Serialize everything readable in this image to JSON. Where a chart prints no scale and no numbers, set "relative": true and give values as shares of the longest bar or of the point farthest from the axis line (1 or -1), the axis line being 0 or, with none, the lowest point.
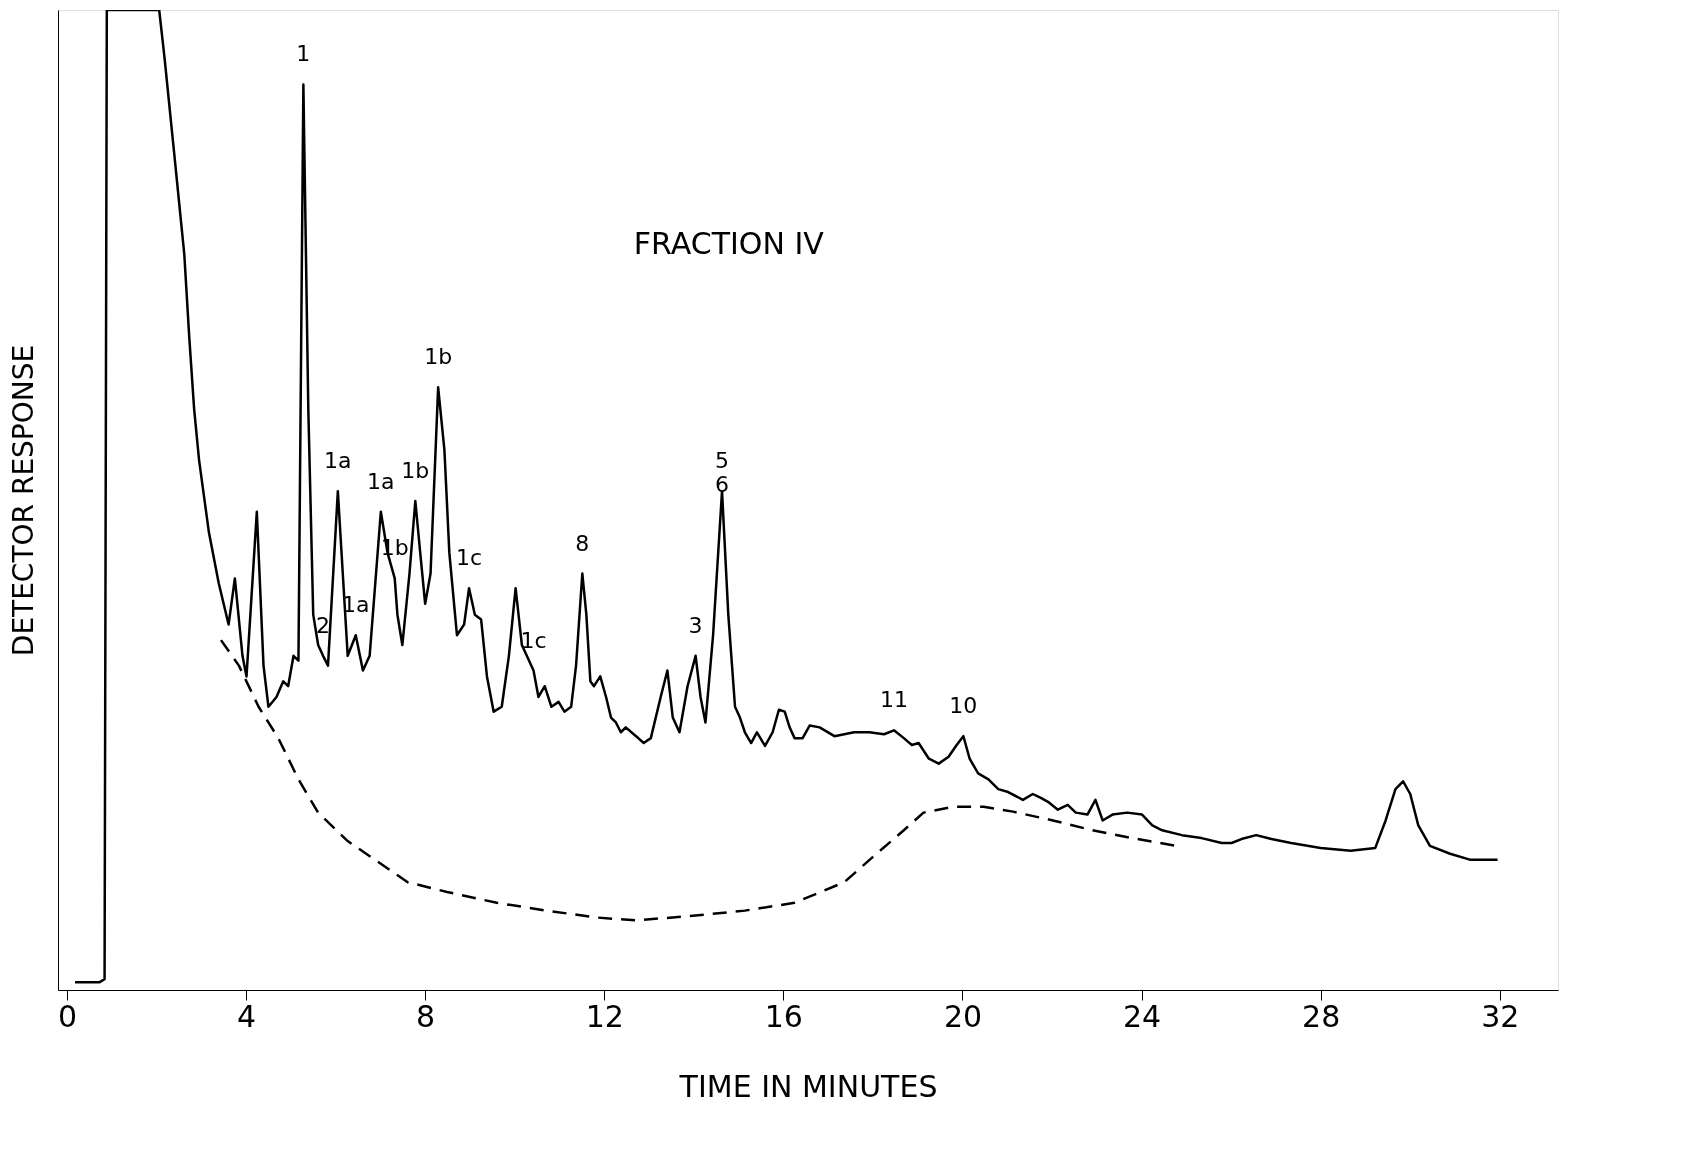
{
  "chart_data": {
    "type": "line",
    "title": "FRACTION IV",
    "xlabel": "TIME IN MINUTES",
    "ylabel": "DETECTOR RESPONSE",
    "relative": true,
    "xlim": [
      -0.2,
      33.3
    ],
    "xticks": [
      0,
      4,
      8,
      12,
      16,
      20,
      24,
      28,
      32
    ],
    "grid": false,
    "series": [
      {
        "color": "#000000",
        "line_style": "solid",
        "x": [
          0.18,
          0.73,
          0.84,
          0.89,
          2.06,
          2.18,
          2.39,
          2.62,
          2.73,
          2.84,
          2.95,
          3.17,
          3.39,
          3.61,
          3.75,
          3.92,
          4.01,
          4.24,
          4.39,
          4.5,
          4.68,
          4.83,
          4.94,
          5.06,
          5.17,
          5.28,
          5.39,
          5.5,
          5.61,
          5.72,
          5.83,
          6.05,
          6.16,
          6.27,
          6.45,
          6.61,
          6.76,
          7.01,
          7.16,
          7.32,
          7.38,
          7.49,
          7.65,
          7.78,
          7.89,
          8.0,
          8.12,
          8.29,
          8.43,
          8.54,
          8.71,
          8.87,
          8.98,
          9.11,
          9.25,
          9.38,
          9.53,
          9.71,
          9.87,
          10.02,
          10.16,
          10.27,
          10.42,
          10.53,
          10.67,
          10.82,
          10.98,
          11.11,
          11.26,
          11.37,
          11.51,
          11.6,
          11.69,
          11.77,
          11.91,
          12.04,
          12.15,
          12.26,
          12.37,
          12.48,
          12.71,
          12.88,
          13.04,
          13.26,
          13.41,
          13.53,
          13.68,
          13.86,
          14.04,
          14.15,
          14.26,
          14.43,
          14.63,
          14.77,
          14.92,
          15.03,
          15.14,
          15.28,
          15.41,
          15.59,
          15.76,
          15.9,
          16.03,
          16.14,
          16.25,
          16.43,
          16.59,
          16.81,
          17.14,
          17.58,
          17.92,
          18.25,
          18.47,
          18.69,
          18.87,
          19.02,
          19.25,
          19.47,
          19.69,
          19.87,
          20.02,
          20.16,
          20.35,
          20.58,
          20.8,
          21.02,
          21.35,
          21.57,
          21.75,
          21.91,
          22.13,
          22.35,
          22.53,
          22.79,
          22.97,
          23.13,
          23.35,
          23.68,
          24.01,
          24.24,
          24.46,
          24.9,
          25.34,
          25.79,
          26.01,
          26.23,
          26.56,
          26.9,
          27.34,
          28.0,
          28.67,
          29.22,
          29.45,
          29.67,
          29.84,
          30.0,
          30.18,
          30.44,
          30.89,
          31.33,
          31.95
        ],
        "values": [
          0.008,
          0.008,
          0.011,
          1.0,
          1.0,
          0.951,
          0.856,
          0.751,
          0.667,
          0.593,
          0.541,
          0.467,
          0.415,
          0.373,
          0.42,
          0.341,
          0.32,
          0.488,
          0.331,
          0.289,
          0.299,
          0.315,
          0.31,
          0.341,
          0.336,
          0.924,
          0.593,
          0.383,
          0.352,
          0.341,
          0.331,
          0.509,
          0.425,
          0.341,
          0.362,
          0.326,
          0.341,
          0.488,
          0.446,
          0.42,
          0.383,
          0.352,
          0.425,
          0.499,
          0.446,
          0.394,
          0.425,
          0.615,
          0.551,
          0.446,
          0.362,
          0.373,
          0.41,
          0.383,
          0.378,
          0.32,
          0.284,
          0.289,
          0.341,
          0.41,
          0.352,
          0.341,
          0.326,
          0.299,
          0.31,
          0.289,
          0.294,
          0.284,
          0.289,
          0.331,
          0.425,
          0.383,
          0.315,
          0.31,
          0.32,
          0.299,
          0.278,
          0.273,
          0.263,
          0.268,
          0.259,
          0.252,
          0.257,
          0.299,
          0.326,
          0.278,
          0.263,
          0.31,
          0.341,
          0.299,
          0.273,
          0.362,
          0.509,
          0.383,
          0.289,
          0.278,
          0.263,
          0.252,
          0.263,
          0.249,
          0.263,
          0.286,
          0.284,
          0.268,
          0.257,
          0.257,
          0.27,
          0.268,
          0.259,
          0.263,
          0.263,
          0.261,
          0.265,
          0.257,
          0.25,
          0.252,
          0.236,
          0.231,
          0.238,
          0.25,
          0.259,
          0.236,
          0.221,
          0.215,
          0.205,
          0.202,
          0.194,
          0.2,
          0.196,
          0.192,
          0.184,
          0.189,
          0.181,
          0.179,
          0.194,
          0.173,
          0.179,
          0.181,
          0.179,
          0.168,
          0.163,
          0.158,
          0.155,
          0.15,
          0.15,
          0.154,
          0.158,
          0.154,
          0.15,
          0.145,
          0.142,
          0.145,
          0.173,
          0.205,
          0.213,
          0.2,
          0.168,
          0.147,
          0.139,
          0.133,
          0.133
        ]
      },
      {
        "color": "#000000",
        "line_style": "dashed",
        "x": [
          3.44,
          3.84,
          4.28,
          4.72,
          5.17,
          5.61,
          6.27,
          6.94,
          7.61,
          8.49,
          9.6,
          10.71,
          11.82,
          12.71,
          14.04,
          15.14,
          16.25,
          17.36,
          18.03,
          18.69,
          19.13,
          19.8,
          20.47,
          21.13,
          22.02,
          22.9,
          23.79,
          24.79
        ],
        "values": [
          0.357,
          0.331,
          0.289,
          0.257,
          0.215,
          0.181,
          0.152,
          0.131,
          0.11,
          0.1,
          0.089,
          0.081,
          0.074,
          0.071,
          0.076,
          0.081,
          0.089,
          0.11,
          0.137,
          0.163,
          0.181,
          0.187,
          0.187,
          0.182,
          0.173,
          0.163,
          0.155,
          0.147
        ]
      }
    ],
    "annotations": [
      {
        "text": "1",
        "x": 5.28,
        "y": 0.924
      },
      {
        "text": "2",
        "x": 5.72,
        "y": 0.341
      },
      {
        "text": "1a",
        "x": 6.05,
        "y": 0.509
      },
      {
        "text": "1a",
        "x": 6.45,
        "y": 0.362
      },
      {
        "text": "1a",
        "x": 7.01,
        "y": 0.488
      },
      {
        "text": "1b",
        "x": 7.32,
        "y": 0.42
      },
      {
        "text": "1b",
        "x": 7.78,
        "y": 0.499
      },
      {
        "text": "1b",
        "x": 8.29,
        "y": 0.615
      },
      {
        "text": "1c",
        "x": 8.98,
        "y": 0.41
      },
      {
        "text": "1c",
        "x": 10.42,
        "y": 0.326
      },
      {
        "text": "8",
        "x": 11.51,
        "y": 0.425
      },
      {
        "text": "3",
        "x": 14.04,
        "y": 0.341
      },
      {
        "text": "5\n6",
        "x": 14.63,
        "y": 0.509
      },
      {
        "text": "11",
        "x": 18.47,
        "y": 0.265
      },
      {
        "text": "10",
        "x": 20.02,
        "y": 0.259
      }
    ]
  }
}
